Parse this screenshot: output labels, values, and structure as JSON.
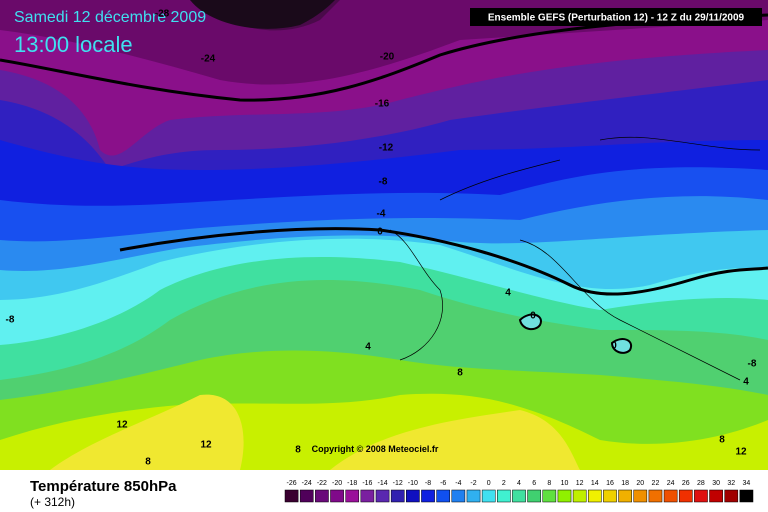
{
  "header": {
    "date": "Samedi 12 décembre 2009",
    "time": "13:00 locale",
    "model": "Ensemble GEFS (Perturbation 12)  -  12 Z du 29/11/2009"
  },
  "contour_labels": [
    "-28",
    "-24",
    "-20",
    "-16",
    "-12",
    "-8",
    "-4",
    "0",
    "-8",
    "4",
    "4",
    "0",
    "0",
    "8",
    "8",
    "12",
    "12",
    "-8",
    "4",
    "8",
    "12",
    "8"
  ],
  "copyright": "Copyright © 2008 Meteociel.fr",
  "footer": {
    "title": "Température 850hPa",
    "lead": "(+ 312h)"
  },
  "legend": {
    "labels": [
      -26,
      -24,
      -22,
      -20,
      -18,
      -16,
      -14,
      -12,
      -10,
      -8,
      -6,
      -4,
      -2,
      0,
      2,
      4,
      6,
      8,
      10,
      12,
      14,
      16,
      18,
      20,
      22,
      24,
      26,
      28,
      30,
      32,
      34
    ],
    "colors": [
      "#3a0030",
      "#50005a",
      "#6a0a7a",
      "#800a8a",
      "#9a109a",
      "#7a20a0",
      "#5a28b0",
      "#3020b0",
      "#1010c0",
      "#1020e0",
      "#1050f0",
      "#2080f0",
      "#30b0f0",
      "#40e0f0",
      "#40f0d0",
      "#40e0a0",
      "#40d070",
      "#60e040",
      "#90f000",
      "#c0f000",
      "#f0f000",
      "#f0d000",
      "#f0b000",
      "#f09000",
      "#f07000",
      "#f05000",
      "#f03000",
      "#e01010",
      "#c00000",
      "#a00000",
      "#000000"
    ]
  }
}
